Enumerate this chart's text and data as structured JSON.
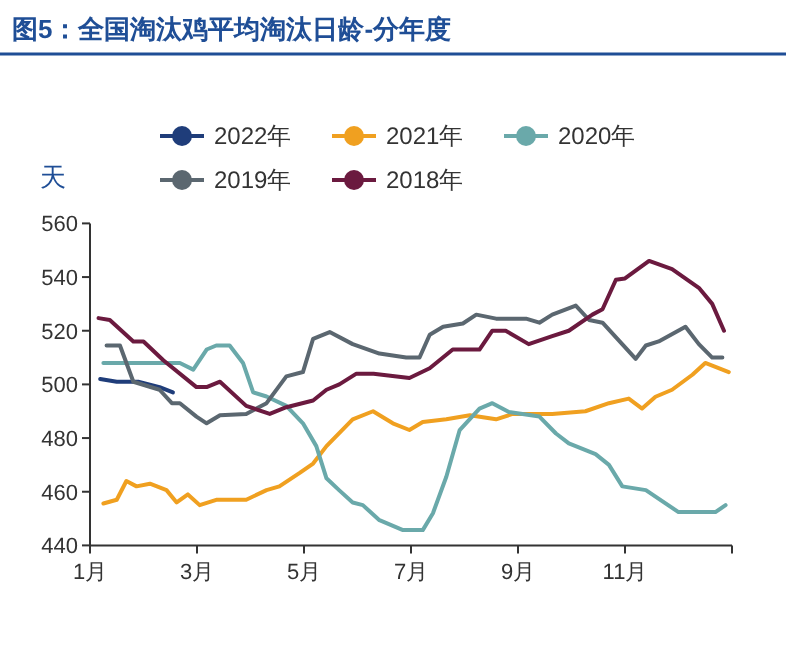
{
  "chart_data": {
    "type": "line",
    "title": "图5：全国淘汰鸡平均淘汰日龄-分年度",
    "ylabel": "天",
    "xlim": [
      1,
      13
    ],
    "xticks": [
      {
        "value": 1,
        "label": "1月"
      },
      {
        "value": 3,
        "label": "3月"
      },
      {
        "value": 5,
        "label": "5月"
      },
      {
        "value": 7,
        "label": "7月"
      },
      {
        "value": 9,
        "label": "9月"
      },
      {
        "value": 11,
        "label": "11月"
      }
    ],
    "ylim": [
      440,
      560
    ],
    "yticks": [
      440,
      460,
      480,
      500,
      520,
      540,
      560
    ],
    "grid": false,
    "legend": "top",
    "line_style": "solid",
    "series": [
      {
        "name": "2022年",
        "color": "#1f3d7a",
        "x": [
          1.19,
          1.5,
          1.9,
          2.3,
          2.55
        ],
        "values": [
          502,
          501,
          501,
          499,
          497
        ]
      },
      {
        "name": "2021年",
        "color": "#f0a020",
        "x": [
          1.25,
          1.5,
          1.68,
          1.87,
          2.12,
          2.43,
          2.62,
          2.83,
          3.05,
          3.36,
          3.92,
          4.3,
          4.54,
          4.92,
          5.17,
          5.42,
          5.91,
          6.29,
          6.66,
          6.97,
          7.22,
          7.66,
          8.1,
          8.59,
          8.9,
          9.64,
          10.26,
          10.7,
          11.07,
          11.32,
          11.57,
          11.88,
          12.26,
          12.5,
          12.94
        ],
        "values": [
          455.6,
          457,
          464,
          462,
          463,
          460.6,
          456,
          459,
          455,
          457,
          457,
          460.6,
          462,
          467,
          470.5,
          477,
          487,
          490,
          485.5,
          483,
          486,
          487,
          488.5,
          487,
          489,
          489,
          490,
          493,
          494.7,
          491,
          495.4,
          498,
          503.6,
          508,
          504.6
        ]
      },
      {
        "name": "2020年",
        "color": "#6aa9aa",
        "x": [
          1.25,
          2.06,
          2.68,
          2.93,
          3.18,
          3.36,
          3.61,
          3.86,
          4.05,
          4.3,
          4.67,
          4.98,
          5.23,
          5.42,
          5.66,
          5.91,
          6.1,
          6.41,
          6.85,
          7.22,
          7.41,
          7.66,
          7.91,
          8.28,
          8.52,
          8.83,
          9.4,
          9.71,
          9.95,
          10.45,
          10.7,
          10.95,
          11.39,
          12.0,
          12.69,
          12.88
        ],
        "values": [
          508,
          508,
          508,
          505.5,
          513,
          514.5,
          514.5,
          508,
          497,
          495.5,
          492,
          485.5,
          477,
          465,
          460.5,
          456,
          455,
          449.4,
          445.7,
          445.7,
          452,
          465.6,
          483,
          491,
          493,
          489.7,
          488,
          481.7,
          478,
          474,
          470,
          462,
          460.6,
          452.4,
          452.4,
          455
        ]
      },
      {
        "name": "2019年",
        "color": "#5b6770",
        "x": [
          1.31,
          1.56,
          1.81,
          2.3,
          2.53,
          2.68,
          2.99,
          3.18,
          3.43,
          3.92,
          4.3,
          4.67,
          4.98,
          5.17,
          5.48,
          5.91,
          6.41,
          6.91,
          7.16,
          7.35,
          7.6,
          7.97,
          8.22,
          8.59,
          9.15,
          9.4,
          9.64,
          10.08,
          10.33,
          10.58,
          11.2,
          11.39,
          11.63,
          12.13,
          12.38,
          12.63,
          12.82
        ],
        "values": [
          514.5,
          514.5,
          501,
          498,
          493,
          493,
          488,
          485.5,
          488.5,
          489,
          493,
          503,
          504.6,
          517,
          519.5,
          515,
          511.5,
          510,
          510,
          518.5,
          521.5,
          522.7,
          526,
          524.5,
          524.5,
          523,
          526,
          529.4,
          524,
          523,
          509.5,
          514.5,
          516,
          521.5,
          515,
          510,
          510
        ]
      },
      {
        "name": "2018年",
        "color": "#6b1a3f",
        "x": [
          1.16,
          1.37,
          1.81,
          2.0,
          2.37,
          2.99,
          3.18,
          3.43,
          3.92,
          4.36,
          4.67,
          5.17,
          5.42,
          5.66,
          5.98,
          6.3,
          6.97,
          7.35,
          7.78,
          8.28,
          8.52,
          8.77,
          9.2,
          9.64,
          9.95,
          10.39,
          10.58,
          10.83,
          11.0,
          11.45,
          11.88,
          12.38,
          12.63,
          12.85
        ],
        "values": [
          524.7,
          524,
          516,
          516,
          509,
          499,
          499,
          501,
          492,
          489,
          491.5,
          494,
          498,
          500,
          504,
          504,
          502.4,
          506,
          513,
          513,
          520,
          520,
          515,
          518,
          520,
          526,
          528,
          539,
          539.5,
          546,
          543,
          536,
          530,
          520
        ]
      }
    ]
  }
}
